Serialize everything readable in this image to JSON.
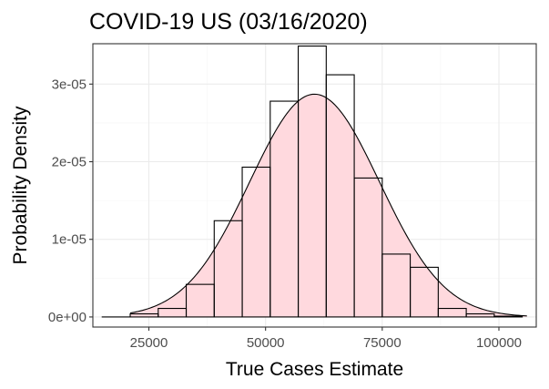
{
  "chart_data": {
    "type": "bar",
    "subtype": "histogram-with-density",
    "title": "COVID-19 US (03/16/2020)",
    "xlabel": "True Cases Estimate",
    "ylabel": "Probability Density",
    "xlim": [
      13000,
      108000
    ],
    "ylim": [
      -1.3e-06,
      3.52e-05
    ],
    "x_ticks": [
      25000,
      50000,
      75000,
      100000
    ],
    "x_tick_labels": [
      "25000",
      "50000",
      "75000",
      "100000"
    ],
    "x_minor_ticks": [
      12500,
      37500,
      62500,
      87500
    ],
    "y_ticks": [
      0,
      1e-05,
      2e-05,
      3e-05
    ],
    "y_tick_labels": [
      "0e+00",
      "1e-05",
      "2e-05",
      "3e-05"
    ],
    "y_minor_ticks": [
      5e-06,
      1.5e-05,
      2.5e-05
    ],
    "bin_width": 6000,
    "bins": [
      {
        "start": 15000,
        "end": 21000,
        "density": 0.0
      },
      {
        "start": 21000,
        "end": 27000,
        "density": 4e-07
      },
      {
        "start": 27000,
        "end": 33000,
        "density": 1.1e-06
      },
      {
        "start": 33000,
        "end": 39000,
        "density": 4.2e-06
      },
      {
        "start": 39000,
        "end": 45000,
        "density": 1.24e-05
      },
      {
        "start": 45000,
        "end": 51000,
        "density": 1.93e-05
      },
      {
        "start": 51000,
        "end": 57000,
        "density": 2.78e-05
      },
      {
        "start": 57000,
        "end": 63000,
        "density": 3.49e-05
      },
      {
        "start": 63000,
        "end": 69000,
        "density": 3.12e-05
      },
      {
        "start": 69000,
        "end": 75000,
        "density": 1.79e-05
      },
      {
        "start": 75000,
        "end": 81000,
        "density": 8.1e-06
      },
      {
        "start": 81000,
        "end": 87000,
        "density": 6.4e-06
      },
      {
        "start": 87000,
        "end": 93000,
        "density": 1.1e-06
      },
      {
        "start": 93000,
        "end": 99000,
        "density": 4e-07
      },
      {
        "start": 99000,
        "end": 105000,
        "density": 1e-07
      }
    ],
    "density_curve": {
      "mean": 60500,
      "sd": 13900,
      "x_range": [
        21000,
        106000
      ]
    },
    "colors": {
      "density_fill": "#ffd9de",
      "density_line": "#000000",
      "bar_outline": "#000000",
      "panel_background": "#ffffff"
    },
    "grid": true,
    "legend": "none"
  }
}
